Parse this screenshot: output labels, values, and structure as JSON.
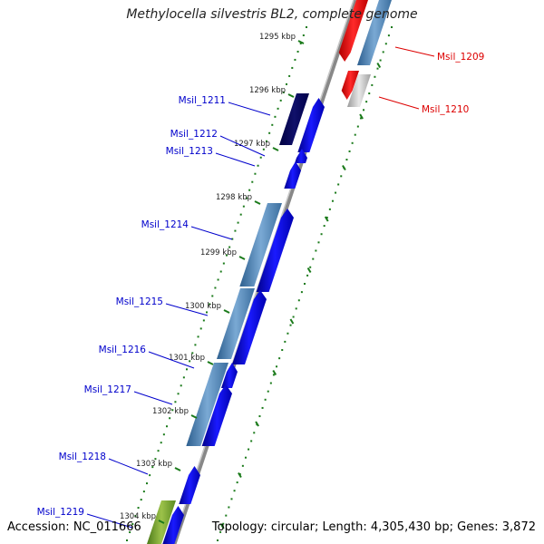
{
  "title": "Methylocella silvestris BL2, complete genome",
  "accession_text": "Accession: NC_011666",
  "summary_text": "Topology: circular; Length: 4,305,430 bp; Genes: 3,872",
  "kbp_ticks": [
    "1295 kbp",
    "1296 kbp",
    "1297 kbp",
    "1298 kbp",
    "1299 kbp",
    "1300 kbp",
    "1301 kbp",
    "1302 kbp",
    "1303 kbp",
    "1304 kbp"
  ],
  "genes_reverse": [
    "Msil_1211",
    "Msil_1212",
    "Msil_1213",
    "Msil_1214",
    "Msil_1215",
    "Msil_1216",
    "Msil_1217",
    "Msil_1218",
    "Msil_1219"
  ],
  "genes_forward": [
    "Msil_1209",
    "Msil_1210"
  ],
  "colors": {
    "reverse_label": "#0000cc",
    "forward_label": "#dd0000",
    "tick_green": "#1a7a1a",
    "backbone": "#888888"
  }
}
